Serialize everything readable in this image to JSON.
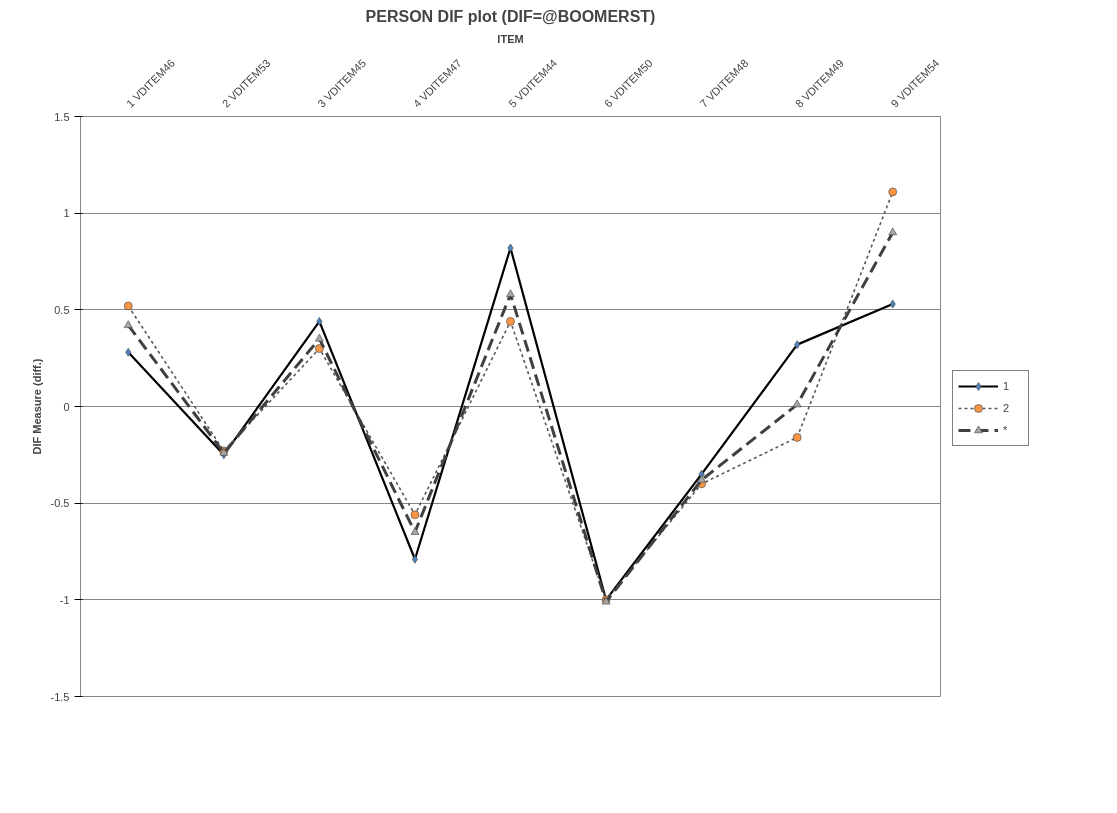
{
  "chart_data": {
    "type": "line",
    "title": "PERSON DIF plot (DIF=@BOOMERST)",
    "xlabel": "ITEM",
    "ylabel": "DIF Measure (diff.)",
    "categories": [
      "1 VDITEM46",
      "2 VDITEM53",
      "3 VDITEM45",
      "4 VDITEM47",
      "5 VDITEM44",
      "6 VDITEM50",
      "7 VDITEM48",
      "8 VDITEM49",
      "9 VDITEM54"
    ],
    "series": [
      {
        "name": "1",
        "color": "#4f81bd",
        "marker": "diamond",
        "line_style": "solid",
        "values": [
          0.28,
          -0.25,
          0.44,
          -0.79,
          0.82,
          -1.0,
          -0.35,
          0.32,
          0.53
        ]
      },
      {
        "name": "2",
        "color": "#f79646",
        "marker": "circle",
        "line_style": "dotted",
        "values": [
          0.52,
          -0.23,
          0.3,
          -0.56,
          0.44,
          -1.0,
          -0.4,
          -0.16,
          1.11
        ]
      },
      {
        "name": "*",
        "color": "#a6a6a6",
        "marker": "triangle",
        "line_style": "dashed",
        "values": [
          0.42,
          -0.24,
          0.35,
          -0.65,
          0.58,
          -1.01,
          -0.38,
          0.01,
          0.9
        ]
      }
    ],
    "ylim": [
      -1.5,
      1.5
    ],
    "yticks": [
      -1.5,
      -1,
      -0.5,
      0,
      0.5,
      1,
      1.5
    ],
    "grid": "y",
    "legend": "right"
  }
}
